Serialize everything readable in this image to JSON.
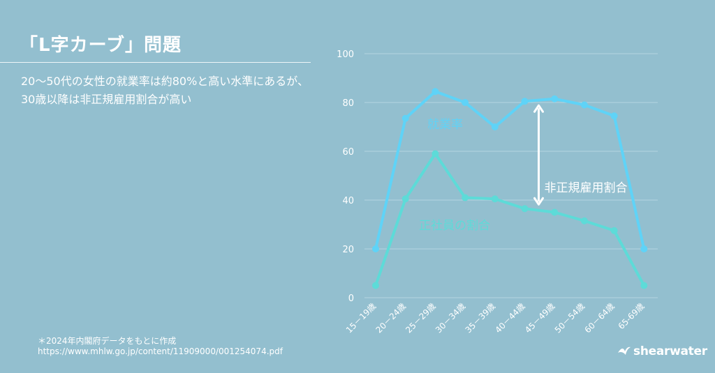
{
  "page": {
    "title": "「L字カーブ」問題",
    "subtitle_lines": [
      "20〜50代の女性の就業率は約80%と高い水準にあるが、",
      "30歳以降は非正規雇用割合が高い"
    ],
    "source_lines": [
      "＊2024年内閣府データをもとに作成",
      "https://www.mhlw.go.jp/content/11909000/001254074.pdf"
    ],
    "brand": "shearwater"
  },
  "colors": {
    "background": "#93bfcf",
    "employment_line": "#5fd3f7",
    "regular_line": "#5ddbd8",
    "grid": "#b6d5e0",
    "text": "#ffffff"
  },
  "chart_data": {
    "type": "line",
    "categories": [
      "15－19歳",
      "20－24歳",
      "25－29歳",
      "30－34歳",
      "35－39歳",
      "40－44歳",
      "45－49歳",
      "50－54歳",
      "60－64歳",
      "65-69歳"
    ],
    "ylim": [
      0,
      100
    ],
    "yticks": [
      0,
      20,
      40,
      60,
      80,
      100
    ],
    "grid": true,
    "series": [
      {
        "name": "就業率",
        "values": [
          20,
          73.5,
          84.5,
          80,
          70,
          80.5,
          81.5,
          79,
          74.5,
          20
        ]
      },
      {
        "name": "正社員の割合",
        "values": [
          5,
          40.5,
          59,
          41,
          40.5,
          36.5,
          35,
          31.5,
          27.5,
          5
        ]
      }
    ],
    "annotation": {
      "label": "非正規雇用割合",
      "category_index": 5,
      "from": 36.5,
      "to": 80.5
    }
  }
}
